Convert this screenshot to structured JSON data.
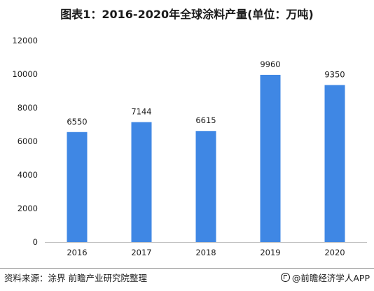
{
  "title": "图表1：2016-2020年全球涂料产量(单位：万吨)",
  "footer": {
    "source": "资料来源：涂界 前瞻产业研究院整理",
    "brand": "@前瞻经济学人APP"
  },
  "colors": {
    "bar": "#3f87e4",
    "axis": "#bfbfbf",
    "text": "#1a1a1a"
  },
  "chart_data": {
    "type": "bar",
    "title": "图表1：2016-2020年全球涂料产量(单位：万吨)",
    "xlabel": "",
    "ylabel": "",
    "categories": [
      "2016",
      "2017",
      "2018",
      "2019",
      "2020"
    ],
    "values": [
      6550,
      7144,
      6615,
      9960,
      9350
    ],
    "data_labels": [
      "6550",
      "7144",
      "6615",
      "9960",
      "9350"
    ],
    "ylim": [
      0,
      12000
    ],
    "yticks": [
      0,
      2000,
      4000,
      6000,
      8000,
      10000,
      12000
    ],
    "grid": false,
    "legend": "none"
  }
}
